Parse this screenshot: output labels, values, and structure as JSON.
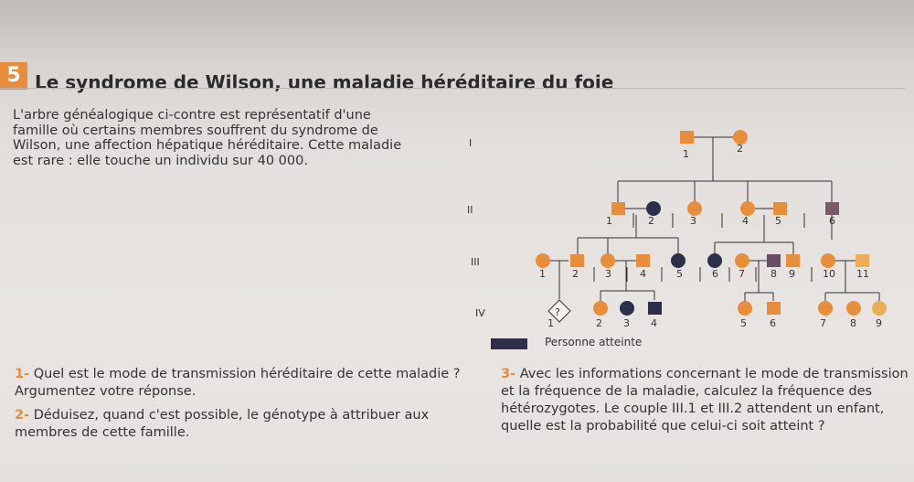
{
  "exercise": {
    "number": "5",
    "title": "Le syndrome de Wilson, une maladie héréditaire du foie"
  },
  "intro": "L'arbre généalogique ci-contre est représentatif d'une famille où certains membres souffrent du syndrome de Wilson, une affection hépatique héréditaire. Cette maladie est rare : elle touche un individu sur 40 000.",
  "pedigree": {
    "colors": {
      "healthy": "#e88e3a",
      "affected": "#2d2e4a"
    },
    "generations": [
      "I",
      "II",
      "III",
      "IV"
    ],
    "individuals": {
      "I": [
        "1",
        "2"
      ],
      "II": [
        "1",
        "2",
        "3",
        "4",
        "5",
        "6"
      ],
      "III": [
        "1",
        "2",
        "3",
        "4",
        "5",
        "6",
        "7",
        "8",
        "9",
        "10",
        "11"
      ],
      "IV": [
        "1",
        "2",
        "3",
        "4",
        "5",
        "6",
        "7",
        "8",
        "9"
      ]
    },
    "unknown_mark": "?",
    "legend": "Personne atteinte"
  },
  "questions": [
    {
      "num": "1-",
      "text": "Quel est le mode de transmission héréditaire de cette maladie ? Argumentez votre réponse."
    },
    {
      "num": "2-",
      "text": "Déduisez, quand c'est possible, le génotype à attribuer aux membres de cette famille."
    },
    {
      "num": "3-",
      "text": "Avec les informations concernant le mode de transmission et la fréquence de la maladie, calculez la fréquence des hétérozygotes. Le couple III.1 et III.2 attendent un enfant, quelle est la probabilité que celui-ci soit atteint ?"
    }
  ]
}
